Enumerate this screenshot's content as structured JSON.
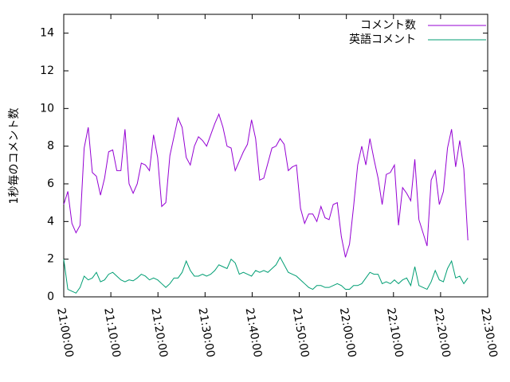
{
  "chart_data": {
    "type": "line",
    "y_label": "1秒毎のコメント数",
    "x": [
      "21:00:00",
      "21:00:52",
      "21:01:44",
      "21:02:36",
      "21:03:28",
      "21:04:20",
      "21:05:12",
      "21:06:04",
      "21:06:56",
      "21:07:48",
      "21:08:40",
      "21:09:32",
      "21:10:24",
      "21:11:16",
      "21:12:08",
      "21:13:00",
      "21:13:52",
      "21:14:44",
      "21:15:36",
      "21:16:28",
      "21:17:20",
      "21:18:12",
      "21:19:04",
      "21:19:56",
      "21:20:48",
      "21:21:40",
      "21:22:32",
      "21:23:24",
      "21:24:16",
      "21:25:08",
      "21:26:00",
      "21:26:52",
      "21:27:44",
      "21:28:36",
      "21:29:28",
      "21:30:20",
      "21:31:12",
      "21:32:04",
      "21:32:56",
      "21:33:48",
      "21:34:40",
      "21:35:32",
      "21:36:24",
      "21:37:16",
      "21:38:08",
      "21:39:00",
      "21:39:52",
      "21:40:44",
      "21:41:36",
      "21:42:28",
      "21:43:20",
      "21:44:12",
      "21:45:04",
      "21:45:56",
      "21:46:48",
      "21:47:40",
      "21:48:32",
      "21:49:24",
      "21:50:16",
      "21:51:08",
      "21:52:00",
      "21:52:52",
      "21:53:44",
      "21:54:36",
      "21:55:28",
      "21:56:20",
      "21:57:12",
      "21:58:04",
      "21:58:56",
      "21:59:48",
      "22:00:40",
      "22:01:32",
      "22:02:24",
      "22:03:16",
      "22:04:08",
      "22:05:00",
      "22:05:52",
      "22:06:44",
      "22:07:36",
      "22:08:28",
      "22:09:20",
      "22:10:12",
      "22:11:04",
      "22:11:56",
      "22:12:48",
      "22:13:40",
      "22:14:32",
      "22:15:24",
      "22:16:16",
      "22:17:08",
      "22:18:00",
      "22:18:52",
      "22:19:44",
      "22:20:36",
      "22:21:28",
      "22:22:20",
      "22:23:12",
      "22:24:04",
      "22:24:56",
      "22:25:48"
    ],
    "series": [
      {
        "name": "コメント数",
        "color": "#9400d3",
        "values": [
          4.9,
          5.6,
          3.9,
          3.4,
          3.8,
          7.9,
          9.0,
          6.6,
          6.4,
          5.4,
          6.3,
          7.7,
          7.8,
          6.7,
          6.7,
          8.9,
          6.0,
          5.5,
          6.0,
          7.1,
          7.0,
          6.7,
          8.6,
          7.4,
          4.8,
          5.0,
          7.5,
          8.5,
          9.5,
          9.0,
          7.4,
          7.0,
          8.0,
          8.5,
          8.3,
          8.0,
          8.6,
          9.2,
          9.7,
          9.0,
          8.0,
          7.9,
          6.7,
          7.2,
          7.7,
          8.1,
          9.4,
          8.4,
          6.2,
          6.3,
          7.1,
          7.9,
          8.0,
          8.4,
          8.1,
          6.7,
          6.9,
          7.0,
          4.7,
          3.9,
          4.4,
          4.4,
          4.0,
          4.8,
          4.2,
          4.1,
          4.9,
          5.0,
          3.2,
          2.1,
          2.8,
          4.8,
          7.0,
          8.0,
          7.0,
          8.4,
          7.3,
          6.3,
          4.9,
          6.5,
          6.6,
          7.0,
          3.8,
          5.8,
          5.5,
          5.1,
          7.3,
          4.1,
          3.4,
          2.7,
          6.2,
          6.7,
          4.9,
          5.6,
          7.9,
          8.9,
          6.9,
          8.3,
          6.8,
          3.0
        ]
      },
      {
        "name": "英語コメント",
        "color": "#009e73",
        "values": [
          2.0,
          0.4,
          0.3,
          0.2,
          0.5,
          1.1,
          0.9,
          1.0,
          1.3,
          0.8,
          0.9,
          1.2,
          1.3,
          1.1,
          0.9,
          0.8,
          0.9,
          0.85,
          1.0,
          1.2,
          1.1,
          0.9,
          1.0,
          0.9,
          0.7,
          0.5,
          0.7,
          1.0,
          1.0,
          1.3,
          1.9,
          1.4,
          1.1,
          1.1,
          1.2,
          1.1,
          1.2,
          1.4,
          1.7,
          1.6,
          1.5,
          2.0,
          1.8,
          1.2,
          1.3,
          1.2,
          1.1,
          1.4,
          1.3,
          1.4,
          1.3,
          1.5,
          1.7,
          2.1,
          1.7,
          1.3,
          1.2,
          1.1,
          0.9,
          0.7,
          0.5,
          0.4,
          0.6,
          0.6,
          0.5,
          0.5,
          0.6,
          0.7,
          0.6,
          0.4,
          0.4,
          0.6,
          0.6,
          0.7,
          1.0,
          1.3,
          1.2,
          1.2,
          0.7,
          0.8,
          0.7,
          0.9,
          0.7,
          0.9,
          1.0,
          0.6,
          1.6,
          0.6,
          0.5,
          0.4,
          0.8,
          1.4,
          0.9,
          0.8,
          1.5,
          1.9,
          1.0,
          1.1,
          0.7,
          1.0
        ]
      }
    ],
    "xlim": [
      "21:00:00",
      "22:30:00"
    ],
    "xticks": [
      "21:00:00",
      "21:10:00",
      "21:20:00",
      "21:30:00",
      "21:40:00",
      "21:50:00",
      "22:00:00",
      "22:10:00",
      "22:20:00",
      "22:30:00"
    ],
    "ylim": [
      0,
      15
    ],
    "yticks": [
      0,
      2,
      4,
      6,
      8,
      10,
      12,
      14
    ],
    "legend": "top-right",
    "grid": false
  }
}
